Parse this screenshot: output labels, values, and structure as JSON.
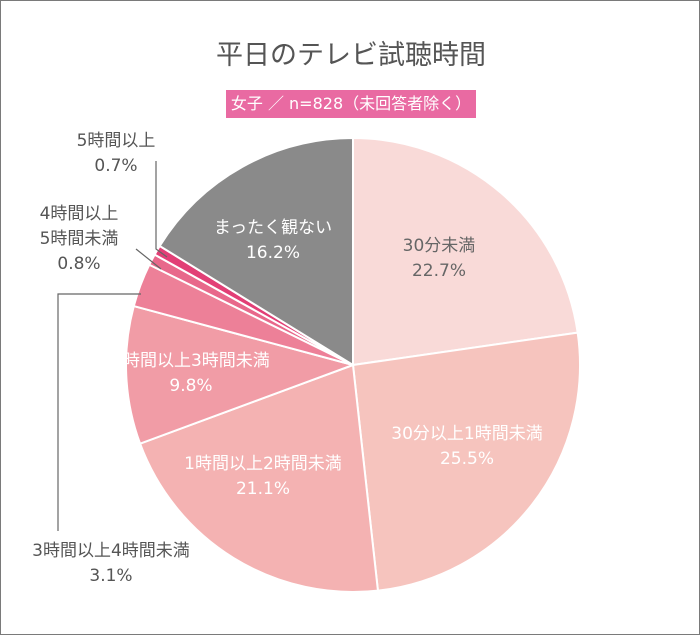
{
  "chart_data": {
    "type": "pie",
    "title": "平日のテレビ試聴時間",
    "subtitle": "女子 ／ n=828（未回答者除く）",
    "start": "top",
    "direction": "clockwise",
    "slices": [
      {
        "label": "30分未満",
        "value": 22.7,
        "display": "22.7%",
        "color": "#f9dad8"
      },
      {
        "label": "30分以上1時間未満",
        "value": 25.5,
        "display": "25.5%",
        "color": "#f6c4be"
      },
      {
        "label": "1時間以上2時間未満",
        "value": 21.1,
        "display": "21.1%",
        "color": "#f4b2b2"
      },
      {
        "label": "2時間以上3時間未満",
        "value": 9.8,
        "display": "9.8%",
        "color": "#f19ca6"
      },
      {
        "label": "3時間以上4時間未満",
        "value": 3.1,
        "display": "3.1%",
        "color": "#ed8098"
      },
      {
        "label": "4時間以上\n5時間未満",
        "value": 0.8,
        "display": "0.8%",
        "color": "#e8688b"
      },
      {
        "label": "5時間以上",
        "value": 0.7,
        "display": "0.7%",
        "color": "#e23f76"
      },
      {
        "label": "まったく観ない",
        "value": 16.2,
        "display": "16.2%",
        "color": "#8a8a8a"
      }
    ]
  }
}
